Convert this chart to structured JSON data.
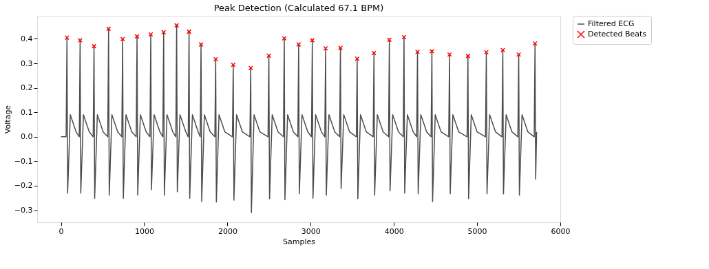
{
  "chart_data": {
    "type": "line",
    "title": "Peak Detection (Calculated 67.1 BPM)",
    "xlabel": "Samples",
    "ylabel": "Voltage",
    "xlim": [
      -286,
      6000
    ],
    "xticks": [
      0,
      1000,
      2000,
      3000,
      4000,
      5000,
      6000
    ],
    "ylim": [
      -0.349,
      0.494
    ],
    "yticks": [
      {
        "value": -0.3,
        "label": "−0.3"
      },
      {
        "value": -0.2,
        "label": "−0.2"
      },
      {
        "value": -0.1,
        "label": "−0.1"
      },
      {
        "value": 0,
        "label": "0.0"
      },
      0.1,
      0.2,
      0.3,
      0.4
    ],
    "grid": false,
    "legend": "top right",
    "series": [
      {
        "name": "Filtered ECG",
        "color": "#4d4d4d",
        "line_style": "solid",
        "marker": "none",
        "x": [
          0,
          62,
          72,
          80,
          112,
          182,
          220,
          230,
          238,
          270,
          340,
          387,
          397,
          405,
          437,
          507,
          562,
          572,
          580,
          612,
          682,
          731,
          741,
          749,
          781,
          851,
          904,
          914,
          922,
          954,
          1024,
          1069,
          1079,
          1087,
          1119,
          1189,
          1224,
          1234,
          1242,
          1274,
          1344,
          1380,
          1390,
          1398,
          1430,
          1500,
          1529,
          1539,
          1547,
          1579,
          1649,
          1673,
          1683,
          1691,
          1723,
          1793,
          1849,
          1859,
          1867,
          1899,
          1969,
          2060,
          2070,
          2078,
          2110,
          2180,
          2270,
          2280,
          2288,
          2320,
          2390,
          2488,
          2498,
          2506,
          2538,
          2608,
          2673,
          2683,
          2691,
          2723,
          2793,
          2846,
          2856,
          2864,
          2896,
          2966,
          3010,
          3020,
          3028,
          3060,
          3130,
          3170,
          3180,
          3188,
          3220,
          3290,
          3348,
          3358,
          3366,
          3398,
          3468,
          3549,
          3559,
          3567,
          3599,
          3669,
          3751,
          3761,
          3769,
          3801,
          3871,
          3936,
          3946,
          3954,
          3986,
          4056,
          4112,
          4122,
          4130,
          4162,
          4232,
          4274,
          4284,
          4292,
          4324,
          4394,
          4447,
          4457,
          4465,
          4497,
          4567,
          4659,
          4669,
          4677,
          4709,
          4779,
          4880,
          4890,
          4898,
          4930,
          5000,
          5101,
          5111,
          5119,
          5151,
          5221,
          5299,
          5309,
          5317,
          5349,
          5419,
          5490,
          5500,
          5508,
          5540,
          5610,
          5686,
          5696,
          5704,
          5715
        ],
        "values": [
          0.0,
          0.0,
          0.405,
          -0.23,
          0.09,
          0.02,
          0.0,
          0.394,
          -0.23,
          0.09,
          0.02,
          0.0,
          0.37,
          -0.251,
          0.09,
          0.02,
          0.0,
          0.441,
          -0.239,
          0.09,
          0.02,
          0.0,
          0.399,
          -0.251,
          0.09,
          0.02,
          0.0,
          0.41,
          -0.239,
          0.09,
          0.02,
          0.0,
          0.418,
          -0.216,
          0.09,
          0.02,
          0.0,
          0.427,
          -0.239,
          0.09,
          0.02,
          0.0,
          0.455,
          -0.225,
          0.09,
          0.02,
          0.0,
          0.429,
          -0.251,
          0.09,
          0.02,
          0.0,
          0.377,
          -0.265,
          0.09,
          0.02,
          0.0,
          0.317,
          -0.267,
          0.09,
          0.02,
          0.0,
          0.294,
          -0.259,
          0.09,
          0.02,
          0.0,
          0.281,
          -0.31,
          0.09,
          0.02,
          0.0,
          0.331,
          -0.253,
          0.09,
          0.02,
          0.0,
          0.402,
          -0.257,
          0.09,
          0.02,
          0.0,
          0.377,
          -0.233,
          0.09,
          0.02,
          0.0,
          0.394,
          -0.251,
          0.09,
          0.02,
          0.0,
          0.361,
          -0.239,
          0.09,
          0.02,
          0.0,
          0.363,
          -0.212,
          0.09,
          0.02,
          0.0,
          0.319,
          -0.253,
          0.09,
          0.02,
          0.0,
          0.342,
          -0.239,
          0.09,
          0.02,
          0.0,
          0.396,
          -0.221,
          0.09,
          0.02,
          0.0,
          0.407,
          -0.23,
          0.09,
          0.02,
          0.0,
          0.347,
          -0.233,
          0.09,
          0.02,
          0.0,
          0.349,
          -0.265,
          0.09,
          0.02,
          0.0,
          0.336,
          -0.233,
          0.09,
          0.02,
          0.0,
          0.33,
          -0.253,
          0.09,
          0.02,
          0.0,
          0.345,
          -0.233,
          0.09,
          0.02,
          0.0,
          0.354,
          -0.233,
          0.09,
          0.02,
          0.0,
          0.336,
          -0.239,
          0.09,
          0.02,
          0.0,
          0.381,
          -0.173,
          0.02
        ]
      },
      {
        "name": "Detected Beats",
        "type": "scatter",
        "color": "#ff0000",
        "marker": "cross",
        "x": [
          72,
          230,
          397,
          572,
          741,
          914,
          1079,
          1234,
          1390,
          1539,
          1683,
          1859,
          2070,
          2280,
          2498,
          2683,
          2856,
          3020,
          3180,
          3358,
          3559,
          3761,
          3946,
          4122,
          4284,
          4457,
          4669,
          4890,
          5111,
          5309,
          5500,
          5696
        ],
        "values": [
          0.405,
          0.394,
          0.37,
          0.441,
          0.399,
          0.41,
          0.418,
          0.427,
          0.455,
          0.429,
          0.377,
          0.317,
          0.294,
          0.281,
          0.331,
          0.402,
          0.377,
          0.394,
          0.361,
          0.363,
          0.319,
          0.342,
          0.396,
          0.407,
          0.347,
          0.349,
          0.336,
          0.33,
          0.345,
          0.354,
          0.336,
          0.381
        ]
      }
    ]
  }
}
